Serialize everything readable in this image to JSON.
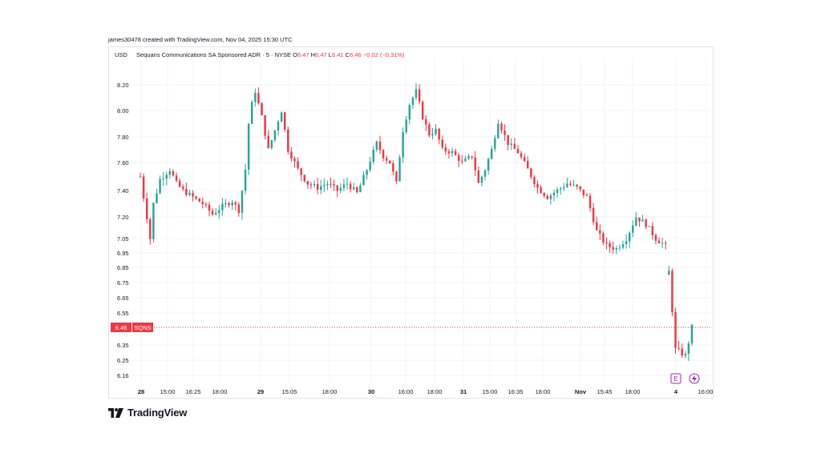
{
  "credit": "james30478 created with TradingView.com, Nov 04, 2025 15:30 UTC",
  "currency": "USD",
  "legend": {
    "name": "Sequans Communications SA Sponsored ADR · 5 · NYSE",
    "o_label": "O",
    "o_value": "6.47",
    "h_label": "H",
    "h_value": "6.47",
    "l_label": "L",
    "l_value": "6.41",
    "c_label": "C",
    "c_value": "6.46",
    "change": "−0.02 (−0.31%)"
  },
  "brand": "TradingView",
  "colors": {
    "up": "#26a69a",
    "down": "#f23645",
    "grid": "#f0f3fa",
    "axis_text": "#131722",
    "event_badge": "#9c27b0"
  },
  "chart_data": {
    "type": "candlestick",
    "symbol": "SQNS",
    "last_price": "6.46",
    "ylim": [
      6.1,
      8.3
    ],
    "y_ticks": [
      "8.20",
      "8.00",
      "7.80",
      "7.60",
      "7.40",
      "7.20",
      "7.05",
      "6.95",
      "6.85",
      "6.75",
      "6.65",
      "6.55",
      "6.35",
      "6.25",
      "6.16"
    ],
    "x_ticks": [
      "28",
      "15:00",
      "16:25",
      "18:00",
      "29",
      "15:05",
      "18:00",
      "30",
      "16:00",
      "18:00",
      "31",
      "15:00",
      "16:35",
      "18:00",
      "Nov",
      "15:45",
      "18:00",
      "4",
      "16:00"
    ],
    "x_tick_bold": [
      "28",
      "29",
      "30",
      "31",
      "Nov",
      "4"
    ],
    "grid": true,
    "price_path": [
      [
        0,
        7.5
      ],
      [
        3,
        7.05
      ],
      [
        4,
        7.3
      ],
      [
        6,
        7.48
      ],
      [
        9,
        7.55
      ],
      [
        11,
        7.45
      ],
      [
        13,
        7.4
      ],
      [
        16,
        7.35
      ],
      [
        19,
        7.3
      ],
      [
        22,
        7.22
      ],
      [
        25,
        7.28
      ],
      [
        28,
        7.32
      ],
      [
        30,
        7.25
      ],
      [
        32,
        7.55
      ],
      [
        33,
        7.9
      ],
      [
        34,
        8.05
      ],
      [
        35,
        8.15
      ],
      [
        37,
        7.95
      ],
      [
        39,
        7.7
      ],
      [
        41,
        7.85
      ],
      [
        43,
        8.0
      ],
      [
        45,
        7.7
      ],
      [
        48,
        7.55
      ],
      [
        51,
        7.45
      ],
      [
        54,
        7.42
      ],
      [
        57,
        7.45
      ],
      [
        60,
        7.4
      ],
      [
        63,
        7.45
      ],
      [
        66,
        7.38
      ],
      [
        69,
        7.55
      ],
      [
        72,
        7.75
      ],
      [
        74,
        7.65
      ],
      [
        76,
        7.6
      ],
      [
        78,
        7.45
      ],
      [
        80,
        7.85
      ],
      [
        82,
        8.05
      ],
      [
        84,
        8.15
      ],
      [
        86,
        7.95
      ],
      [
        88,
        7.82
      ],
      [
        90,
        7.85
      ],
      [
        92,
        7.7
      ],
      [
        95,
        7.68
      ],
      [
        98,
        7.6
      ],
      [
        101,
        7.65
      ],
      [
        103,
        7.45
      ],
      [
        105,
        7.55
      ],
      [
        107,
        7.7
      ],
      [
        109,
        7.92
      ],
      [
        112,
        7.75
      ],
      [
        115,
        7.68
      ],
      [
        118,
        7.55
      ],
      [
        121,
        7.42
      ],
      [
        124,
        7.35
      ],
      [
        127,
        7.4
      ],
      [
        130,
        7.45
      ],
      [
        133,
        7.42
      ],
      [
        136,
        7.35
      ],
      [
        139,
        7.1
      ],
      [
        142,
        7.0
      ],
      [
        145,
        6.98
      ],
      [
        148,
        7.05
      ],
      [
        151,
        7.2
      ],
      [
        154,
        7.15
      ],
      [
        157,
        7.05
      ],
      [
        160,
        7.0
      ],
      [
        161,
        6.82
      ],
      [
        163,
        6.32
      ],
      [
        166,
        6.28
      ],
      [
        168,
        6.46
      ]
    ]
  }
}
